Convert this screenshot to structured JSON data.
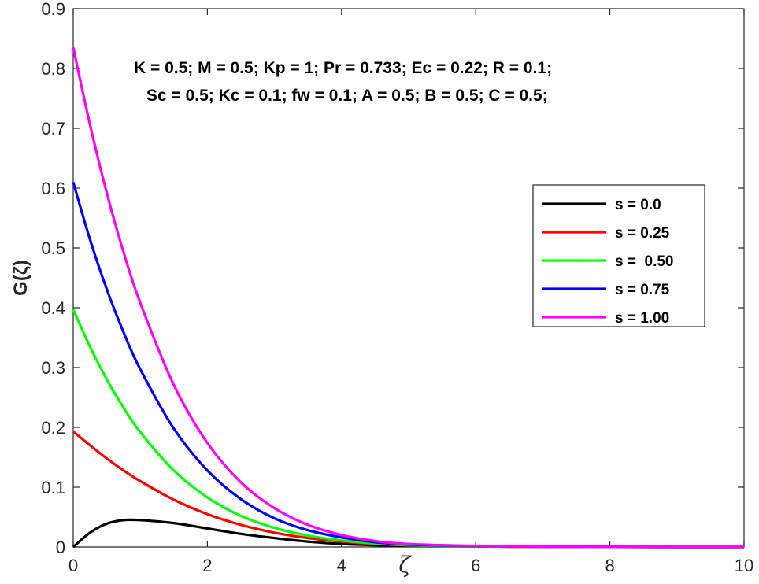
{
  "chart_data": {
    "type": "line",
    "xlabel": "ζ",
    "ylabel": "G(ζ)",
    "xlim": [
      0,
      10
    ],
    "ylim": [
      0,
      0.9
    ],
    "xticks": [
      0,
      2,
      4,
      6,
      8,
      10
    ],
    "yticks": [
      0,
      0.1,
      0.2,
      0.3,
      0.4,
      0.5,
      0.6,
      0.7,
      0.8,
      0.9
    ],
    "grid": false,
    "legend_position": "right",
    "annotations": [
      "K = 0.5; M = 0.5; Kp = 1; Pr = 0.733; Ec = 0.22;  R = 0.1;",
      "Sc = 0.5; Kc = 0.1; fw = 0.1; A = 0.5; B = 0.5; C = 0.5;"
    ],
    "x": [
      0,
      0.25,
      0.5,
      0.75,
      1,
      1.5,
      2,
      2.5,
      3,
      3.5,
      4,
      4.5,
      5,
      6,
      7,
      8,
      9,
      10
    ],
    "series": [
      {
        "name": "s = 0.0",
        "color": "#000000",
        "values": [
          0,
          0.024,
          0.039,
          0.045,
          0.045,
          0.04,
          0.031,
          0.022,
          0.015,
          0.009,
          0.005,
          0.003,
          0.002,
          0.0008,
          0.0003,
          0.0001,
          0,
          0
        ]
      },
      {
        "name": "s = 0.25",
        "color": "#ff0000",
        "values": [
          0.193,
          0.17,
          0.148,
          0.128,
          0.11,
          0.079,
          0.055,
          0.037,
          0.024,
          0.015,
          0.009,
          0.005,
          0.003,
          0.001,
          0.0004,
          0.0001,
          0,
          0
        ]
      },
      {
        "name": "s =  0.50",
        "color": "#00ff00",
        "values": [
          0.397,
          0.335,
          0.28,
          0.233,
          0.192,
          0.128,
          0.083,
          0.052,
          0.032,
          0.019,
          0.011,
          0.006,
          0.003,
          0.001,
          0.0004,
          0.0001,
          0,
          0
        ]
      },
      {
        "name": "s = 0.75",
        "color": "#0000ff",
        "values": [
          0.61,
          0.514,
          0.431,
          0.359,
          0.297,
          0.198,
          0.128,
          0.08,
          0.048,
          0.028,
          0.016,
          0.008,
          0.004,
          0.0015,
          0.0005,
          0.0002,
          0,
          0
        ]
      },
      {
        "name": "s = 1.00",
        "color": "#ff00ff",
        "values": [
          0.835,
          0.706,
          0.592,
          0.493,
          0.408,
          0.271,
          0.174,
          0.108,
          0.065,
          0.037,
          0.02,
          0.01,
          0.005,
          0.0018,
          0.0006,
          0.0002,
          0,
          0
        ]
      }
    ]
  }
}
